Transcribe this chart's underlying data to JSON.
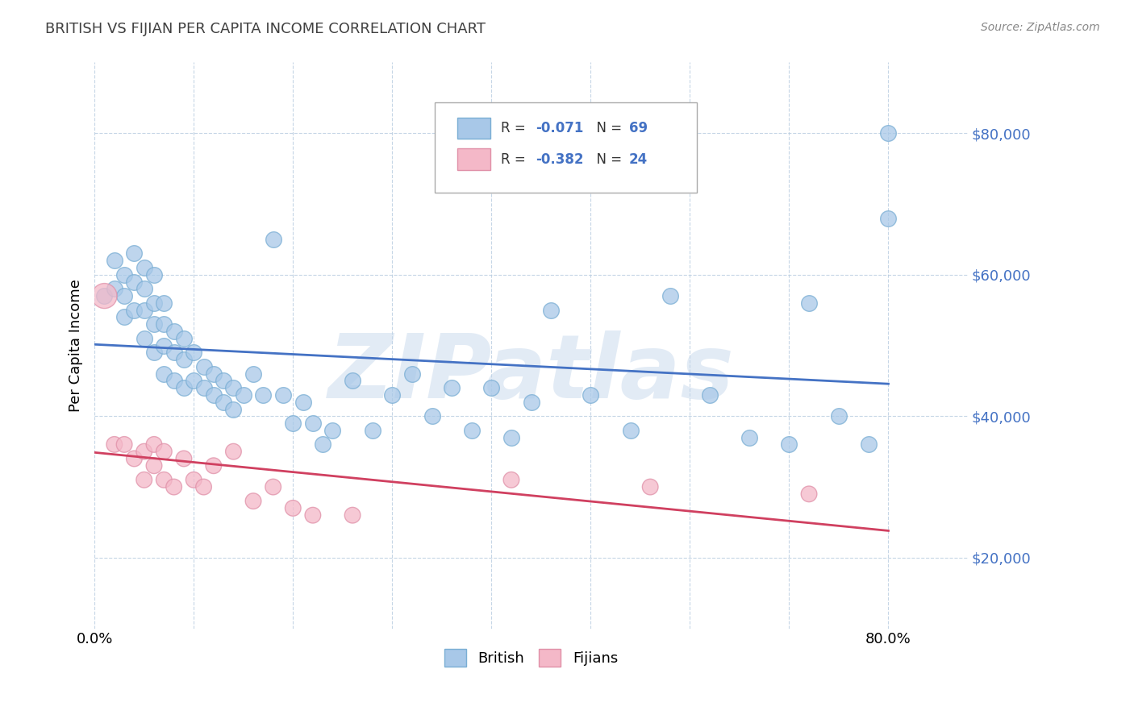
{
  "title": "BRITISH VS FIJIAN PER CAPITA INCOME CORRELATION CHART",
  "source_text": "Source: ZipAtlas.com",
  "ylabel": "Per Capita Income",
  "xlim": [
    0.0,
    0.88
  ],
  "ylim": [
    10000,
    90000
  ],
  "yticks": [
    20000,
    40000,
    60000,
    80000
  ],
  "ytick_labels": [
    "$20,000",
    "$40,000",
    "$60,000",
    "$80,000"
  ],
  "xtick_positions": [
    0.0,
    0.1,
    0.2,
    0.3,
    0.4,
    0.5,
    0.6,
    0.7,
    0.8
  ],
  "xtick_labels": [
    "0.0%",
    "",
    "",
    "",
    "",
    "",
    "",
    "",
    "80.0%"
  ],
  "british_color": "#a8c8e8",
  "british_edge_color": "#7aaed4",
  "fijian_color": "#f4b8c8",
  "fijian_edge_color": "#e090a8",
  "british_line_color": "#4472c4",
  "fijian_line_color": "#d04060",
  "watermark": "ZIPatlas",
  "british_x": [
    0.01,
    0.02,
    0.02,
    0.03,
    0.03,
    0.03,
    0.04,
    0.04,
    0.04,
    0.05,
    0.05,
    0.05,
    0.05,
    0.06,
    0.06,
    0.06,
    0.06,
    0.07,
    0.07,
    0.07,
    0.07,
    0.08,
    0.08,
    0.08,
    0.09,
    0.09,
    0.09,
    0.1,
    0.1,
    0.11,
    0.11,
    0.12,
    0.12,
    0.13,
    0.13,
    0.14,
    0.14,
    0.15,
    0.16,
    0.17,
    0.18,
    0.19,
    0.2,
    0.21,
    0.22,
    0.23,
    0.24,
    0.26,
    0.28,
    0.3,
    0.32,
    0.34,
    0.36,
    0.38,
    0.4,
    0.42,
    0.44,
    0.46,
    0.5,
    0.54,
    0.58,
    0.62,
    0.66,
    0.7,
    0.72,
    0.75,
    0.78,
    0.8,
    0.8
  ],
  "british_y": [
    57000,
    62000,
    58000,
    60000,
    57000,
    54000,
    63000,
    59000,
    55000,
    61000,
    58000,
    55000,
    51000,
    60000,
    56000,
    53000,
    49000,
    56000,
    53000,
    50000,
    46000,
    52000,
    49000,
    45000,
    51000,
    48000,
    44000,
    49000,
    45000,
    47000,
    44000,
    46000,
    43000,
    45000,
    42000,
    44000,
    41000,
    43000,
    46000,
    43000,
    65000,
    43000,
    39000,
    42000,
    39000,
    36000,
    38000,
    45000,
    38000,
    43000,
    46000,
    40000,
    44000,
    38000,
    44000,
    37000,
    42000,
    55000,
    43000,
    38000,
    57000,
    43000,
    37000,
    36000,
    56000,
    40000,
    36000,
    68000,
    80000
  ],
  "fijian_x": [
    0.01,
    0.02,
    0.03,
    0.04,
    0.05,
    0.05,
    0.06,
    0.06,
    0.07,
    0.07,
    0.08,
    0.09,
    0.1,
    0.11,
    0.12,
    0.14,
    0.16,
    0.18,
    0.2,
    0.22,
    0.26,
    0.42,
    0.56,
    0.72
  ],
  "fijian_y": [
    57000,
    36000,
    36000,
    34000,
    35000,
    31000,
    36000,
    33000,
    35000,
    31000,
    30000,
    34000,
    31000,
    30000,
    33000,
    35000,
    28000,
    30000,
    27000,
    26000,
    26000,
    31000,
    30000,
    29000
  ],
  "fijian_sizes_large": [
    0
  ],
  "british_r": "-0.071",
  "british_n": "69",
  "fijian_r": "-0.382",
  "fijian_n": "24"
}
